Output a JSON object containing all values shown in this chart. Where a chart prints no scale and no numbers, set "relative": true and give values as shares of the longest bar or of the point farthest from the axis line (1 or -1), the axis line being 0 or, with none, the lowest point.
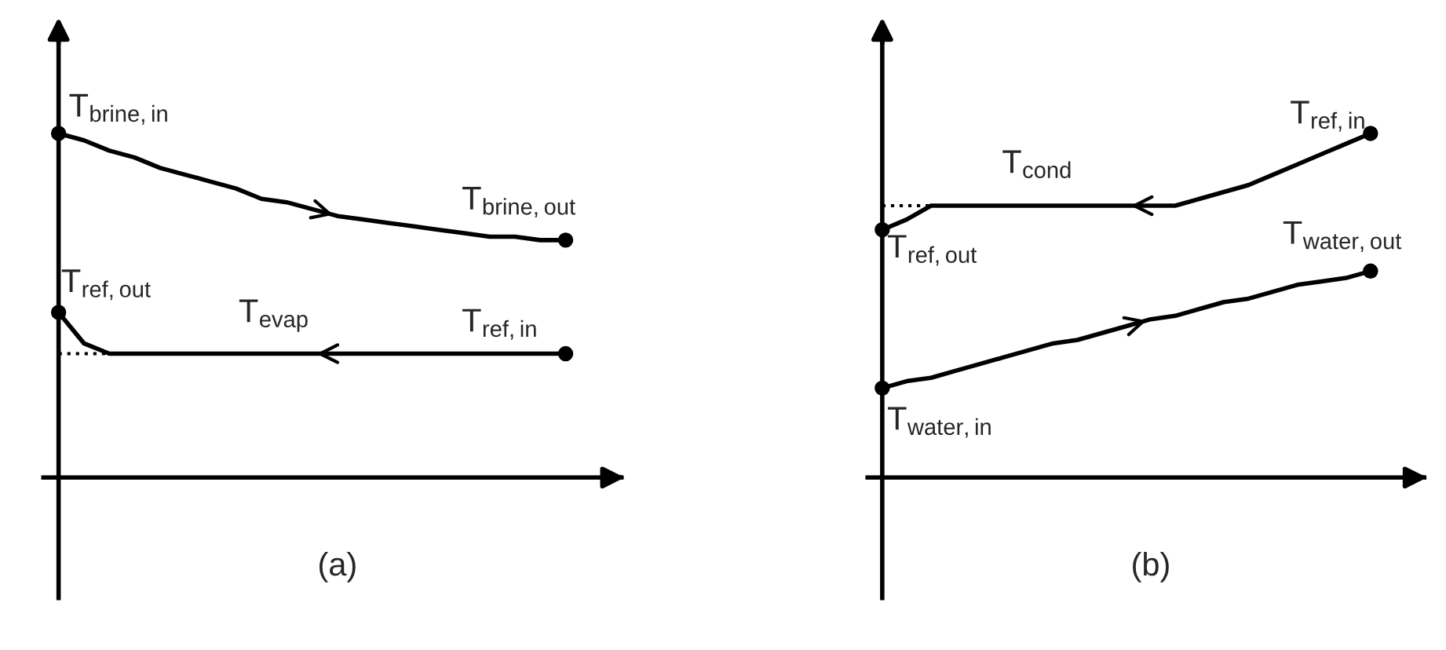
{
  "chart_data": [
    {
      "type": "line",
      "relative": true,
      "xlabel": "(a)",
      "categories": [
        null,
        null,
        null,
        null,
        null,
        null,
        null,
        null,
        null,
        null,
        null,
        null,
        null,
        null,
        null,
        null,
        null,
        null,
        null,
        null,
        null
      ],
      "line_style": "solid",
      "series": [
        {
          "color": "#000000",
          "values": [
            1.0,
            0.98,
            0.95,
            0.93,
            0.9,
            0.88,
            0.86,
            0.84,
            0.81,
            0.8,
            0.78,
            0.76,
            0.75,
            0.74,
            0.73,
            0.72,
            0.71,
            0.7,
            0.7,
            0.69,
            0.69
          ]
        },
        {
          "color": "#000000",
          "values": [
            0.48,
            0.39,
            0.36,
            0.36,
            0.36,
            0.36,
            0.36,
            0.36,
            0.36,
            0.36,
            0.36,
            0.36,
            0.36,
            0.36,
            0.36,
            0.36,
            0.36,
            0.36,
            0.36,
            0.36,
            0.36
          ]
        },
        {
          "color": "#000000",
          "marker": "none",
          "line_style": "dotted",
          "values": [
            0.36,
            0.36,
            0.36,
            null,
            null,
            null,
            null,
            null,
            null,
            null,
            null,
            null,
            null,
            null,
            null,
            null,
            null,
            null,
            null,
            null,
            null
          ]
        }
      ],
      "annotations": [
        "T$_{brine,in}$",
        "T$_{brine,out}$",
        "T$_{ref,out}$",
        "T$_{evap}$",
        "T$_{ref,in}$"
      ]
    },
    {
      "type": "line",
      "relative": true,
      "xlabel": "(b)",
      "categories": [
        null,
        null,
        null,
        null,
        null,
        null,
        null,
        null,
        null,
        null,
        null,
        null,
        null,
        null,
        null,
        null,
        null,
        null,
        null,
        null,
        null
      ],
      "line_style": "solid",
      "series": [
        {
          "color": "#000000",
          "values": [
            0.72,
            0.75,
            0.79,
            0.79,
            0.79,
            0.79,
            0.79,
            0.79,
            0.79,
            0.79,
            0.79,
            0.79,
            0.79,
            0.81,
            0.83,
            0.85,
            0.88,
            0.91,
            0.94,
            0.97,
            1.0
          ]
        },
        {
          "color": "#000000",
          "values": [
            0.26,
            0.28,
            0.29,
            0.31,
            0.33,
            0.35,
            0.37,
            0.39,
            0.4,
            0.42,
            0.44,
            0.46,
            0.47,
            0.49,
            0.51,
            0.52,
            0.54,
            0.56,
            0.57,
            0.58,
            0.6
          ]
        },
        {
          "color": "#000000",
          "marker": "none",
          "line_style": "dotted",
          "values": [
            0.79,
            0.79,
            0.79,
            null,
            null,
            null,
            null,
            null,
            null,
            null,
            null,
            null,
            null,
            null,
            null,
            null,
            null,
            null,
            null,
            null,
            null
          ]
        }
      ],
      "annotations": [
        "T$_{ref,in}$",
        "T$_{cond}$",
        "T$_{ref,out}$",
        "T$_{water,out}$",
        "T$_{water,in}$"
      ]
    }
  ]
}
